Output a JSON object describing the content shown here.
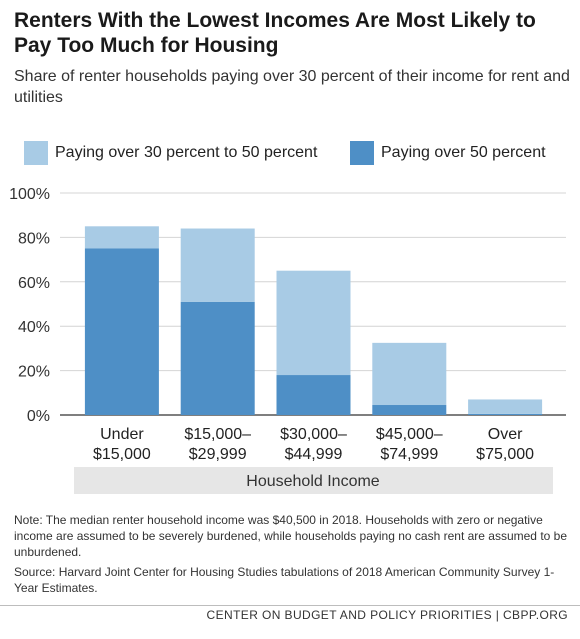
{
  "chart_data": {
    "type": "bar",
    "stacked": true,
    "title": "Renters With the Lowest Incomes Are Most Likely to Pay Too Much for Housing",
    "subtitle": "Share of renter households paying over 30 percent of their income for rent and utilities",
    "xlabel": "Household Income",
    "ylabel": "",
    "ylim": [
      0,
      100
    ],
    "yticks": [
      "0%",
      "20%",
      "40%",
      "60%",
      "80%",
      "100%"
    ],
    "grid": true,
    "legend_position": "top",
    "categories": [
      [
        "Under",
        "$15,000"
      ],
      [
        "$15,000–",
        "$29,999"
      ],
      [
        "$30,000–",
        "$44,999"
      ],
      [
        "$45,000–",
        "$74,999"
      ],
      [
        "Over",
        "$75,000"
      ]
    ],
    "series": [
      {
        "name": "Paying over 50 percent",
        "color": "#4e8fc6",
        "values": [
          75,
          51,
          18,
          4.5,
          0.5
        ]
      },
      {
        "name": "Paying over 30 percent to 50 percent",
        "color": "#a8cbe5",
        "values": [
          10,
          33,
          47,
          28,
          6.5
        ]
      }
    ]
  },
  "legend": {
    "moderate_label": "Paying over 30 percent to 50 percent",
    "severe_label": "Paying over 50 percent"
  },
  "colors": {
    "moderate": "#a8cbe5",
    "severe": "#4e8fc6",
    "axis_band": "#e6e6e6"
  },
  "note": "Note: The median renter household income was $40,500 in 2018. Households with zero or negative income are assumed to be severely burdened, while households paying no cash rent are assumed to be unburdened.",
  "source": "Source: Harvard Joint Center for Housing Studies tabulations of 2018 American Community Survey 1-Year Estimates.",
  "footer": "CENTER ON BUDGET AND POLICY PRIORITIES | CBPP.ORG"
}
